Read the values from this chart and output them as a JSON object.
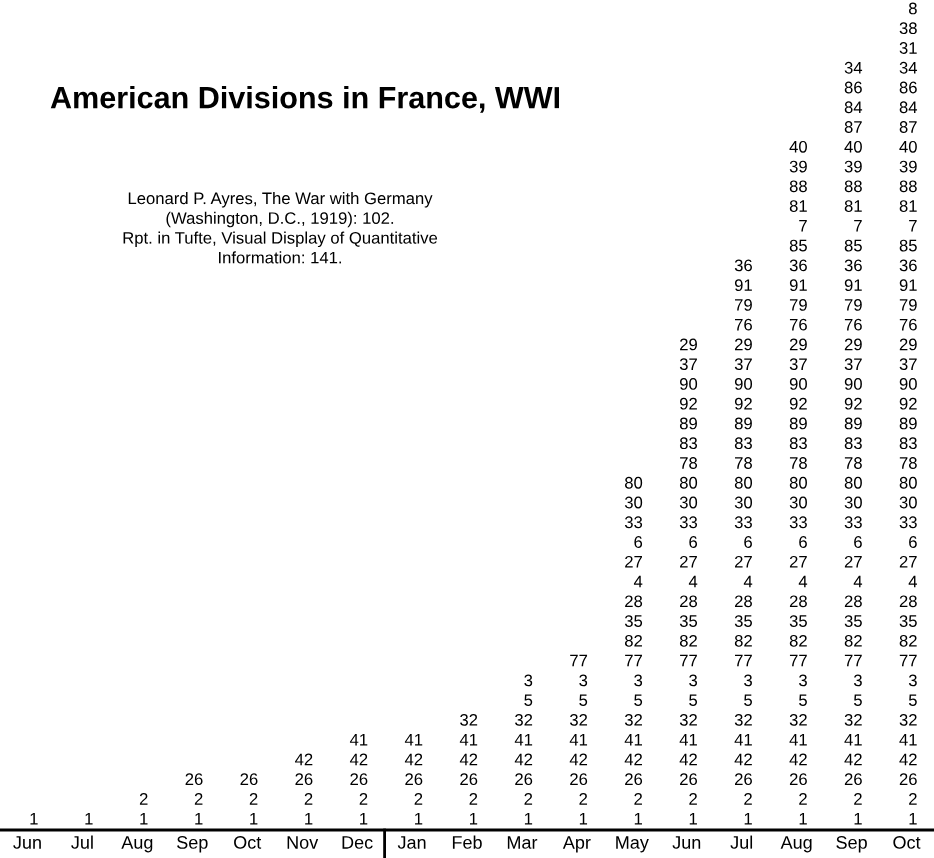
{
  "chart_data": {
    "type": "other",
    "title": "American Divisions in France, WWI",
    "annotations": [
      "Leonard P. Ayres, The War with Germany\n(Washington, D.C., 1919): 102.\nRpt. in Tufte, Visual Display of Quantitative\nInformation: 141."
    ],
    "categories": [
      "Jun",
      "Jul",
      "Aug",
      "Sep",
      "Oct",
      "Nov",
      "Dec",
      "Jan",
      "Feb",
      "Mar",
      "Apr",
      "May",
      "Jun",
      "Jul",
      "Aug",
      "Sep",
      "Oct"
    ],
    "data_labels": true,
    "series": [
      {
        "values": [
          1,
          1,
          1,
          1,
          1,
          1,
          1,
          1,
          1,
          1,
          1,
          1,
          1,
          1,
          1,
          1,
          1
        ]
      },
      {
        "values": [
          null,
          null,
          2,
          2,
          2,
          2,
          2,
          2,
          2,
          2,
          2,
          2,
          2,
          2,
          2,
          2,
          2
        ]
      },
      {
        "values": [
          null,
          null,
          null,
          26,
          26,
          26,
          26,
          26,
          26,
          26,
          26,
          26,
          26,
          26,
          26,
          26,
          26
        ]
      },
      {
        "values": [
          null,
          null,
          null,
          null,
          null,
          42,
          42,
          42,
          42,
          42,
          42,
          42,
          42,
          42,
          42,
          42,
          42
        ]
      },
      {
        "values": [
          null,
          null,
          null,
          null,
          null,
          null,
          41,
          41,
          41,
          41,
          41,
          41,
          41,
          41,
          41,
          41,
          41
        ]
      },
      {
        "values": [
          null,
          null,
          null,
          null,
          null,
          null,
          null,
          null,
          32,
          32,
          32,
          32,
          32,
          32,
          32,
          32,
          32
        ]
      },
      {
        "values": [
          null,
          null,
          null,
          null,
          null,
          null,
          null,
          null,
          null,
          5,
          5,
          5,
          5,
          5,
          5,
          5,
          5
        ]
      },
      {
        "values": [
          null,
          null,
          null,
          null,
          null,
          null,
          null,
          null,
          null,
          3,
          3,
          3,
          3,
          3,
          3,
          3,
          3
        ]
      },
      {
        "values": [
          null,
          null,
          null,
          null,
          null,
          null,
          null,
          null,
          null,
          null,
          77,
          77,
          77,
          77,
          77,
          77,
          77
        ]
      },
      {
        "values": [
          null,
          null,
          null,
          null,
          null,
          null,
          null,
          null,
          null,
          null,
          null,
          82,
          82,
          82,
          82,
          82,
          82
        ]
      },
      {
        "values": [
          null,
          null,
          null,
          null,
          null,
          null,
          null,
          null,
          null,
          null,
          null,
          35,
          35,
          35,
          35,
          35,
          35
        ]
      },
      {
        "values": [
          null,
          null,
          null,
          null,
          null,
          null,
          null,
          null,
          null,
          null,
          null,
          28,
          28,
          28,
          28,
          28,
          28
        ]
      },
      {
        "values": [
          null,
          null,
          null,
          null,
          null,
          null,
          null,
          null,
          null,
          null,
          null,
          4,
          4,
          4,
          4,
          4,
          4
        ]
      },
      {
        "values": [
          null,
          null,
          null,
          null,
          null,
          null,
          null,
          null,
          null,
          null,
          null,
          27,
          27,
          27,
          27,
          27,
          27
        ]
      },
      {
        "values": [
          null,
          null,
          null,
          null,
          null,
          null,
          null,
          null,
          null,
          null,
          null,
          6,
          6,
          6,
          6,
          6,
          6
        ]
      },
      {
        "values": [
          null,
          null,
          null,
          null,
          null,
          null,
          null,
          null,
          null,
          null,
          null,
          33,
          33,
          33,
          33,
          33,
          33
        ]
      },
      {
        "values": [
          null,
          null,
          null,
          null,
          null,
          null,
          null,
          null,
          null,
          null,
          null,
          30,
          30,
          30,
          30,
          30,
          30
        ]
      },
      {
        "values": [
          null,
          null,
          null,
          null,
          null,
          null,
          null,
          null,
          null,
          null,
          null,
          80,
          80,
          80,
          80,
          80,
          80
        ]
      },
      {
        "values": [
          null,
          null,
          null,
          null,
          null,
          null,
          null,
          null,
          null,
          null,
          null,
          null,
          78,
          78,
          78,
          78,
          78
        ]
      },
      {
        "values": [
          null,
          null,
          null,
          null,
          null,
          null,
          null,
          null,
          null,
          null,
          null,
          null,
          83,
          83,
          83,
          83,
          83
        ]
      },
      {
        "values": [
          null,
          null,
          null,
          null,
          null,
          null,
          null,
          null,
          null,
          null,
          null,
          null,
          89,
          89,
          89,
          89,
          89
        ]
      },
      {
        "values": [
          null,
          null,
          null,
          null,
          null,
          null,
          null,
          null,
          null,
          null,
          null,
          null,
          92,
          92,
          92,
          92,
          92
        ]
      },
      {
        "values": [
          null,
          null,
          null,
          null,
          null,
          null,
          null,
          null,
          null,
          null,
          null,
          null,
          90,
          90,
          90,
          90,
          90
        ]
      },
      {
        "values": [
          null,
          null,
          null,
          null,
          null,
          null,
          null,
          null,
          null,
          null,
          null,
          null,
          37,
          37,
          37,
          37,
          37
        ]
      },
      {
        "values": [
          null,
          null,
          null,
          null,
          null,
          null,
          null,
          null,
          null,
          null,
          null,
          null,
          29,
          29,
          29,
          29,
          29
        ]
      },
      {
        "values": [
          null,
          null,
          null,
          null,
          null,
          null,
          null,
          null,
          null,
          null,
          null,
          null,
          null,
          76,
          76,
          76,
          76
        ]
      },
      {
        "values": [
          null,
          null,
          null,
          null,
          null,
          null,
          null,
          null,
          null,
          null,
          null,
          null,
          null,
          79,
          79,
          79,
          79
        ]
      },
      {
        "values": [
          null,
          null,
          null,
          null,
          null,
          null,
          null,
          null,
          null,
          null,
          null,
          null,
          null,
          91,
          91,
          91,
          91
        ]
      },
      {
        "values": [
          null,
          null,
          null,
          null,
          null,
          null,
          null,
          null,
          null,
          null,
          null,
          null,
          null,
          36,
          36,
          36,
          36
        ]
      },
      {
        "values": [
          null,
          null,
          null,
          null,
          null,
          null,
          null,
          null,
          null,
          null,
          null,
          null,
          null,
          null,
          85,
          85,
          85
        ]
      },
      {
        "values": [
          null,
          null,
          null,
          null,
          null,
          null,
          null,
          null,
          null,
          null,
          null,
          null,
          null,
          null,
          7,
          7,
          7
        ]
      },
      {
        "values": [
          null,
          null,
          null,
          null,
          null,
          null,
          null,
          null,
          null,
          null,
          null,
          null,
          null,
          null,
          81,
          81,
          81
        ]
      },
      {
        "values": [
          null,
          null,
          null,
          null,
          null,
          null,
          null,
          null,
          null,
          null,
          null,
          null,
          null,
          null,
          88,
          88,
          88
        ]
      },
      {
        "values": [
          null,
          null,
          null,
          null,
          null,
          null,
          null,
          null,
          null,
          null,
          null,
          null,
          null,
          null,
          39,
          39,
          39
        ]
      },
      {
        "values": [
          null,
          null,
          null,
          null,
          null,
          null,
          null,
          null,
          null,
          null,
          null,
          null,
          null,
          null,
          40,
          40,
          40
        ]
      },
      {
        "values": [
          null,
          null,
          null,
          null,
          null,
          null,
          null,
          null,
          null,
          null,
          null,
          null,
          null,
          null,
          null,
          87,
          87
        ]
      },
      {
        "values": [
          null,
          null,
          null,
          null,
          null,
          null,
          null,
          null,
          null,
          null,
          null,
          null,
          null,
          null,
          null,
          84,
          84
        ]
      },
      {
        "values": [
          null,
          null,
          null,
          null,
          null,
          null,
          null,
          null,
          null,
          null,
          null,
          null,
          null,
          null,
          null,
          86,
          86
        ]
      },
      {
        "values": [
          null,
          null,
          null,
          null,
          null,
          null,
          null,
          null,
          null,
          null,
          null,
          null,
          null,
          null,
          null,
          34,
          34
        ]
      },
      {
        "values": [
          null,
          null,
          null,
          null,
          null,
          null,
          null,
          null,
          null,
          null,
          null,
          null,
          null,
          null,
          null,
          null,
          31
        ]
      },
      {
        "values": [
          null,
          null,
          null,
          null,
          null,
          null,
          null,
          null,
          null,
          null,
          null,
          null,
          null,
          null,
          null,
          null,
          38
        ]
      },
      {
        "values": [
          null,
          null,
          null,
          null,
          null,
          null,
          null,
          null,
          null,
          null,
          null,
          null,
          null,
          null,
          null,
          null,
          8
        ]
      }
    ]
  }
}
